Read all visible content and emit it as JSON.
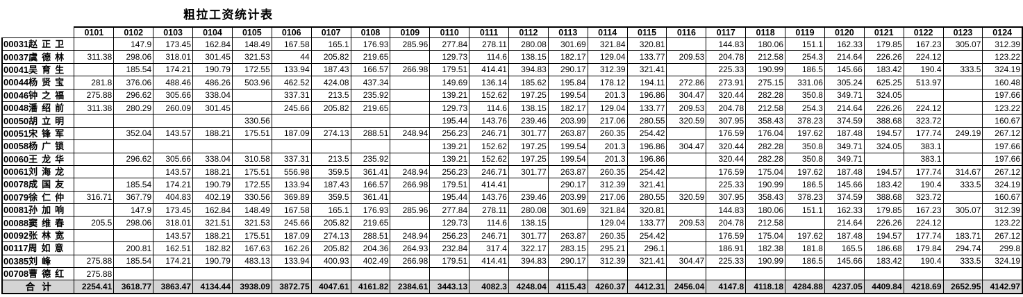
{
  "title": "粗拉工资统计表",
  "table": {
    "columns": [
      "0101",
      "0102",
      "0103",
      "0104",
      "0105",
      "0106",
      "0107",
      "0108",
      "0109",
      "0110",
      "0111",
      "0112",
      "0113",
      "0114",
      "0115",
      "0116",
      "0117",
      "0118",
      "0119",
      "0120",
      "0121",
      "0122",
      "0123",
      "0124"
    ],
    "rows": [
      {
        "id": "00031",
        "name": "赵正卫",
        "values": [
          "",
          "147.9",
          "173.45",
          "162.84",
          "148.49",
          "167.58",
          "165.1",
          "176.93",
          "285.96",
          "277.84",
          "278.11",
          "280.08",
          "301.69",
          "321.84",
          "320.81",
          "",
          "144.83",
          "180.06",
          "151.1",
          "162.33",
          "179.85",
          "167.23",
          "305.07",
          "312.39"
        ]
      },
      {
        "id": "00037",
        "name": "虞德林",
        "values": [
          "311.38",
          "298.06",
          "318.01",
          "301.45",
          "321.53",
          "44",
          "205.82",
          "219.65",
          "",
          "129.73",
          "114.6",
          "138.15",
          "182.17",
          "129.04",
          "133.77",
          "209.53",
          "204.78",
          "212.58",
          "254.3",
          "214.64",
          "226.26",
          "224.12",
          "",
          "123.22"
        ]
      },
      {
        "id": "00041",
        "name": "吴育生",
        "values": [
          "",
          "185.54",
          "174.21",
          "190.79",
          "172.55",
          "133.94",
          "187.43",
          "166.57",
          "266.98",
          "179.51",
          "414.41",
          "394.83",
          "290.17",
          "312.39",
          "321.41",
          "",
          "225.33",
          "190.99",
          "186.5",
          "145.66",
          "183.42",
          "190.4",
          "333.5",
          "324.19"
        ]
      },
      {
        "id": "00044",
        "name": "杨贤宝",
        "values": [
          "281.8",
          "376.06",
          "488.46",
          "486.26",
          "503.96",
          "462.52",
          "424.08",
          "437.34",
          "",
          "149.69",
          "136.14",
          "185.62",
          "195.84",
          "178.12",
          "194.11",
          "272.86",
          "273.91",
          "275.15",
          "331.06",
          "305.24",
          "625.25",
          "513.97",
          "",
          "160.48"
        ]
      },
      {
        "id": "00046",
        "name": "钟之福",
        "values": [
          "275.88",
          "296.62",
          "305.66",
          "338.04",
          "",
          "337.31",
          "213.5",
          "235.92",
          "",
          "139.21",
          "152.62",
          "197.25",
          "199.54",
          "201.3",
          "196.86",
          "304.47",
          "320.44",
          "282.28",
          "350.8",
          "349.71",
          "324.05",
          "",
          "",
          "197.66"
        ]
      },
      {
        "id": "00048",
        "name": "潘绍前",
        "values": [
          "311.38",
          "280.29",
          "260.09",
          "301.45",
          "",
          "245.66",
          "205.82",
          "219.65",
          "",
          "129.73",
          "114.6",
          "138.15",
          "182.17",
          "129.04",
          "133.77",
          "209.53",
          "204.78",
          "212.58",
          "254.3",
          "214.64",
          "226.26",
          "224.12",
          "",
          "123.22"
        ]
      },
      {
        "id": "00050",
        "name": "胡立明",
        "values": [
          "",
          "",
          "",
          "",
          "330.56",
          "",
          "",
          "",
          "",
          "195.44",
          "143.76",
          "239.46",
          "203.99",
          "217.06",
          "280.55",
          "320.59",
          "307.95",
          "358.43",
          "378.23",
          "374.59",
          "388.68",
          "323.72",
          "",
          "160.67"
        ]
      },
      {
        "id": "00051",
        "name": "宋锋军",
        "values": [
          "",
          "352.04",
          "143.57",
          "188.21",
          "175.51",
          "187.09",
          "274.13",
          "288.51",
          "248.94",
          "256.23",
          "246.71",
          "301.77",
          "263.87",
          "260.35",
          "254.42",
          "",
          "176.59",
          "176.04",
          "197.62",
          "187.48",
          "194.57",
          "177.74",
          "249.19",
          "267.12"
        ]
      },
      {
        "id": "00058",
        "name": "杨广锁",
        "values": [
          "",
          "",
          "",
          "",
          "",
          "",
          "",
          "",
          "",
          "139.21",
          "152.62",
          "197.25",
          "199.54",
          "201.3",
          "196.86",
          "304.47",
          "320.44",
          "282.28",
          "350.8",
          "349.71",
          "324.05",
          "383.1",
          "",
          "197.66"
        ]
      },
      {
        "id": "00060",
        "name": "王龙华",
        "values": [
          "",
          "296.62",
          "305.66",
          "338.04",
          "310.58",
          "337.31",
          "213.5",
          "235.92",
          "",
          "139.21",
          "152.62",
          "197.25",
          "199.54",
          "201.3",
          "196.86",
          "",
          "320.44",
          "282.28",
          "350.8",
          "349.71",
          "",
          "383.1",
          "",
          "197.66"
        ]
      },
      {
        "id": "00061",
        "name": "刘海龙",
        "values": [
          "",
          "",
          "143.57",
          "188.21",
          "175.51",
          "556.98",
          "359.5",
          "361.41",
          "248.94",
          "256.23",
          "246.71",
          "301.77",
          "263.87",
          "260.35",
          "254.42",
          "",
          "176.59",
          "175.04",
          "197.62",
          "187.48",
          "194.57",
          "177.74",
          "314.67",
          "267.12"
        ]
      },
      {
        "id": "00078",
        "name": "成国友",
        "values": [
          "",
          "185.54",
          "174.21",
          "190.79",
          "172.55",
          "133.94",
          "187.43",
          "166.57",
          "266.98",
          "179.51",
          "414.41",
          "",
          "290.17",
          "312.39",
          "321.41",
          "",
          "225.33",
          "190.99",
          "186.5",
          "145.66",
          "183.42",
          "190.4",
          "333.5",
          "324.19"
        ]
      },
      {
        "id": "00079",
        "name": "徐仁仲",
        "values": [
          "316.71",
          "367.79",
          "404.83",
          "402.19",
          "330.56",
          "369.89",
          "359.5",
          "361.41",
          "",
          "195.44",
          "143.76",
          "239.46",
          "203.99",
          "217.06",
          "280.55",
          "320.59",
          "307.95",
          "358.43",
          "378.23",
          "374.59",
          "388.68",
          "323.72",
          "",
          "160.67"
        ]
      },
      {
        "id": "00081",
        "name": "孙加响",
        "values": [
          "",
          "147.9",
          "173.45",
          "162.84",
          "148.49",
          "167.58",
          "165.1",
          "176.93",
          "285.96",
          "277.84",
          "278.11",
          "280.08",
          "301.69",
          "321.84",
          "320.81",
          "",
          "144.83",
          "180.06",
          "151.1",
          "162.33",
          "179.85",
          "167.23",
          "305.07",
          "312.39"
        ]
      },
      {
        "id": "00088",
        "name": "窦维春",
        "values": [
          "205.5",
          "298.06",
          "318.01",
          "321.51",
          "321.53",
          "245.66",
          "205.82",
          "219.65",
          "",
          "129.73",
          "114.6",
          "138.15",
          "",
          "129.04",
          "133.77",
          "209.53",
          "204.78",
          "212.58",
          "",
          "214.64",
          "226.26",
          "224.12",
          "",
          "123.22"
        ]
      },
      {
        "id": "00092",
        "name": "张林宽",
        "values": [
          "",
          "",
          "143.57",
          "188.21",
          "175.51",
          "187.09",
          "274.13",
          "288.51",
          "248.94",
          "256.23",
          "246.71",
          "301.77",
          "263.87",
          "260.35",
          "254.42",
          "",
          "176.59",
          "175.04",
          "197.62",
          "187.48",
          "194.57",
          "177.74",
          "183.71",
          "267.12"
        ]
      },
      {
        "id": "00117",
        "name": "周如意",
        "values": [
          "",
          "200.81",
          "162.51",
          "182.82",
          "167.63",
          "162.26",
          "205.82",
          "204.36",
          "264.93",
          "232.84",
          "317.4",
          "322.17",
          "283.15",
          "295.21",
          "296.1",
          "",
          "186.91",
          "182.38",
          "181.8",
          "165.5",
          "186.68",
          "179.84",
          "294.74",
          "299.8"
        ]
      },
      {
        "id": "00385",
        "name": "刘峰",
        "values": [
          "275.88",
          "185.54",
          "174.21",
          "190.79",
          "483.13",
          "133.94",
          "400.93",
          "402.49",
          "266.98",
          "179.51",
          "414.41",
          "394.83",
          "290.17",
          "312.39",
          "321.41",
          "304.47",
          "225.33",
          "190.99",
          "186.5",
          "145.66",
          "183.42",
          "190.4",
          "333.5",
          "324.19"
        ]
      },
      {
        "id": "00708",
        "name": "曹德红",
        "values": [
          "275.88",
          "",
          "",
          "",
          "",
          "",
          "",
          "",
          "",
          "",
          "",
          "",
          "",
          "",
          "",
          "",
          "",
          "",
          "",
          "",
          "",
          "",
          "",
          ""
        ]
      }
    ],
    "total": {
      "label": "合计",
      "values": [
        "2254.41",
        "3618.77",
        "3863.47",
        "4134.44",
        "3938.09",
        "3872.75",
        "4047.61",
        "4161.82",
        "2384.61",
        "3443.13",
        "4082.3",
        "4248.04",
        "4115.43",
        "4260.37",
        "4412.31",
        "2456.04",
        "4147.8",
        "4118.18",
        "4284.88",
        "4237.05",
        "4409.84",
        "4218.69",
        "2652.95",
        "4142.97"
      ]
    }
  }
}
